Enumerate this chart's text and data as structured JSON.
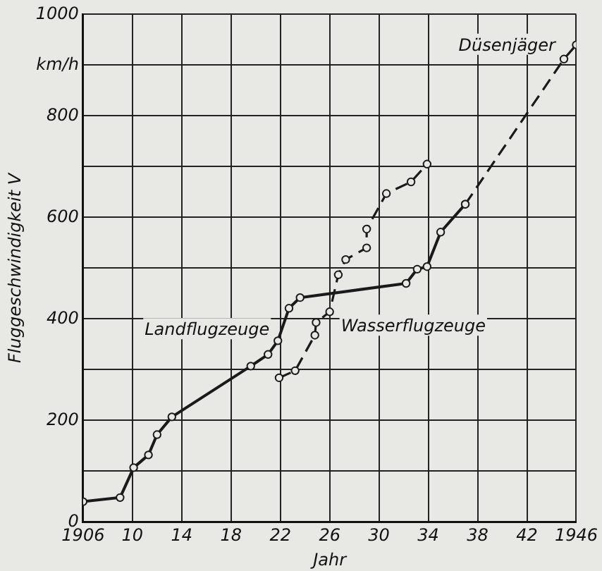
{
  "chart_data": {
    "type": "line",
    "xlabel": "Jahr",
    "ylabel": "Fluggeschwindigkeit V",
    "xlim": [
      1906,
      1946
    ],
    "xticks": [
      {
        "value": 1906,
        "label": "1906"
      },
      {
        "value": 1910,
        "label": "10"
      },
      {
        "value": 1914,
        "label": "14"
      },
      {
        "value": 1918,
        "label": "18"
      },
      {
        "value": 1922,
        "label": "22"
      },
      {
        "value": 1926,
        "label": "26"
      },
      {
        "value": 1930,
        "label": "30"
      },
      {
        "value": 1934,
        "label": "34"
      },
      {
        "value": 1938,
        "label": "38"
      },
      {
        "value": 1942,
        "label": "42"
      },
      {
        "value": 1946,
        "label": "1946"
      }
    ],
    "ylim": [
      0,
      1000
    ],
    "yticks": [
      0,
      {
        "value": 100,
        "label": null
      },
      200,
      {
        "value": 300,
        "label": null
      },
      400,
      {
        "value": 500,
        "label": null
      },
      600,
      {
        "value": 700,
        "label": null
      },
      800,
      {
        "value": 900,
        "label": "km/h"
      },
      1000
    ],
    "grid": true,
    "legend": false,
    "marker": "circle",
    "series": [
      {
        "name": "Landflugzeuge",
        "color": "#1a1a1a",
        "line_style": "solid",
        "x": [
          1906,
          1909,
          1910.1,
          1911.3,
          1912,
          1913.2,
          1919.6,
          1921,
          1921.8,
          1922.7,
          1923.6,
          1932.2,
          1933.1,
          1933.9,
          1935,
          1937
        ],
        "values": [
          40,
          48,
          107,
          132,
          172,
          207,
          307,
          330,
          357,
          421,
          442,
          470,
          498,
          503,
          571,
          626
        ]
      },
      {
        "name": "Wasserflugzeuge",
        "color": "#1a1a1a",
        "line_style": "dashed",
        "x": [
          1921.9,
          1923.2,
          1924.8,
          1924.9,
          1926,
          1926.7,
          1927.3,
          1929,
          1929,
          1930.6,
          1932.6,
          1933.9
        ],
        "values": [
          284,
          298,
          368,
          393,
          414,
          487,
          517,
          540,
          577,
          647,
          670,
          705
        ]
      },
      {
        "name": "Düsenjäger",
        "color": "#1a1a1a",
        "line_style": "dashed",
        "x": [
          1937,
          1945,
          1946
        ],
        "values": [
          626,
          912,
          940
        ]
      }
    ]
  }
}
